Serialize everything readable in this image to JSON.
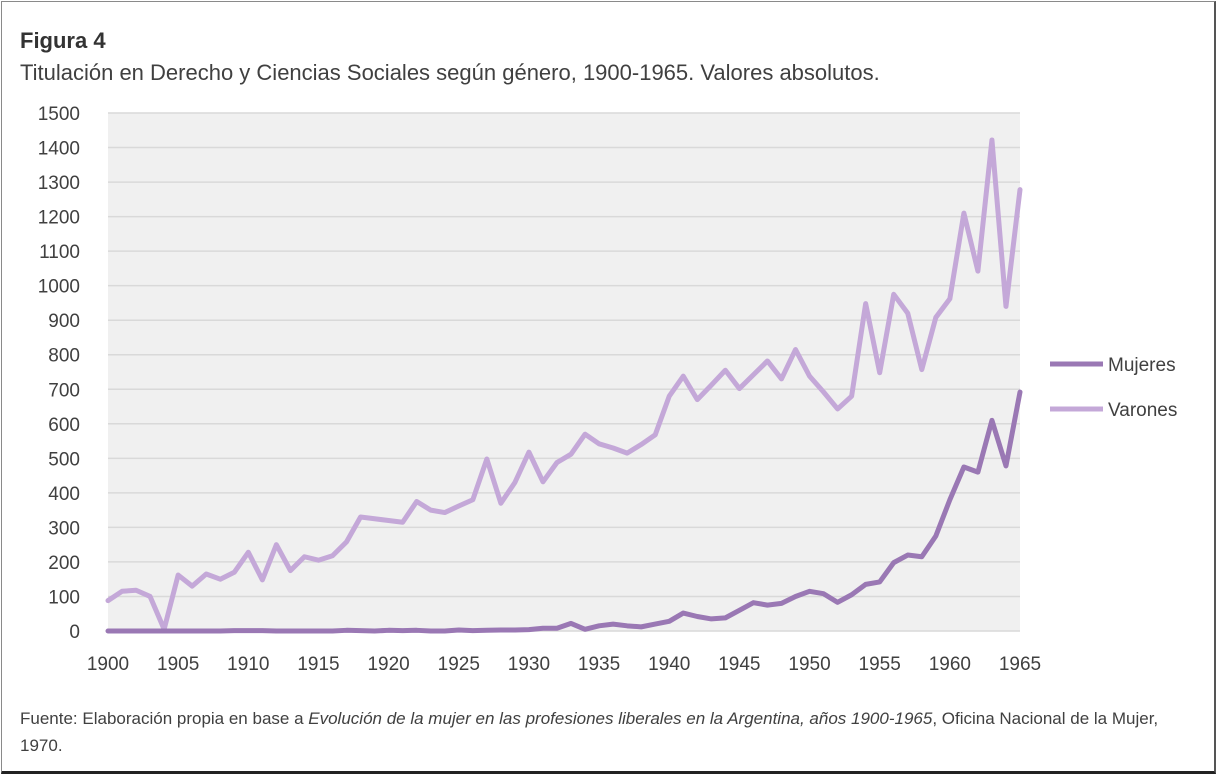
{
  "figure_label": "Figura 4",
  "figure_title": "Titulación en Derecho y Ciencias Sociales según género, 1900-1965. Valores absolutos.",
  "source": {
    "prefix": "Fuente: Elaboración propia en base a ",
    "work": "Evolución de la mujer en las profesiones liberales en la Argentina, años 1900-1965",
    "suffix": ", Oficina Nacional de la Mujer, 1970."
  },
  "colors": {
    "mujeres": "#9a78b4",
    "varones": "#c4a8d8",
    "plot_bg": "#f0f0f0",
    "grid": "#d9d9d9"
  },
  "chart_data": {
    "type": "line",
    "title": "Titulación en Derecho y Ciencias Sociales según género, 1900-1965. Valores absolutos.",
    "xlabel": "",
    "ylabel": "",
    "xlim": [
      1900,
      1965
    ],
    "ylim": [
      0,
      1500
    ],
    "x_ticks": [
      1900,
      1905,
      1910,
      1915,
      1920,
      1925,
      1930,
      1935,
      1940,
      1945,
      1950,
      1955,
      1960,
      1965
    ],
    "y_ticks": [
      0,
      100,
      200,
      300,
      400,
      500,
      600,
      700,
      800,
      900,
      1000,
      1100,
      1200,
      1300,
      1400,
      1500
    ],
    "grid": "horizontal",
    "legend_position": "right",
    "x": [
      1900,
      1901,
      1902,
      1903,
      1904,
      1905,
      1906,
      1907,
      1908,
      1909,
      1910,
      1911,
      1912,
      1913,
      1914,
      1915,
      1916,
      1917,
      1918,
      1919,
      1920,
      1921,
      1922,
      1923,
      1924,
      1925,
      1926,
      1927,
      1928,
      1929,
      1930,
      1931,
      1932,
      1933,
      1934,
      1935,
      1936,
      1937,
      1938,
      1939,
      1940,
      1941,
      1942,
      1943,
      1944,
      1945,
      1946,
      1947,
      1948,
      1949,
      1950,
      1951,
      1952,
      1953,
      1954,
      1955,
      1956,
      1957,
      1958,
      1959,
      1960,
      1961,
      1962,
      1963,
      1964,
      1965
    ],
    "series": [
      {
        "name": "Mujeres",
        "values": [
          0,
          0,
          0,
          0,
          0,
          0,
          0,
          0,
          0,
          1,
          1,
          1,
          0,
          0,
          0,
          0,
          0,
          2,
          1,
          0,
          2,
          1,
          2,
          0,
          0,
          3,
          1,
          2,
          3,
          3,
          4,
          8,
          8,
          22,
          5,
          15,
          20,
          15,
          12,
          20,
          28,
          52,
          42,
          35,
          38,
          60,
          82,
          75,
          80,
          100,
          115,
          108,
          83,
          105,
          135,
          142,
          198,
          220,
          215,
          275,
          380,
          475,
          460,
          610,
          478,
          692
        ]
      },
      {
        "name": "Varones",
        "values": [
          88,
          115,
          118,
          100,
          5,
          162,
          130,
          165,
          150,
          170,
          228,
          148,
          250,
          175,
          215,
          205,
          218,
          258,
          330,
          325,
          320,
          315,
          375,
          350,
          343,
          362,
          380,
          498,
          370,
          430,
          518,
          432,
          488,
          512,
          570,
          542,
          530,
          515,
          540,
          568,
          680,
          738,
          670,
          712,
          755,
          702,
          742,
          782,
          730,
          815,
          738,
          692,
          643,
          680,
          948,
          748,
          975,
          920,
          757,
          908,
          962,
          1210,
          1042,
          1422,
          940,
          1278
        ]
      }
    ]
  }
}
